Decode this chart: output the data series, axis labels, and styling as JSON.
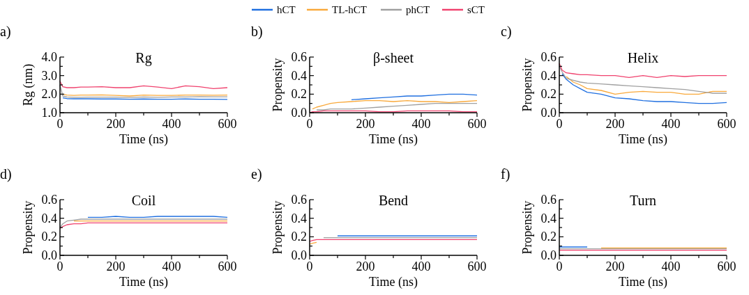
{
  "chart_data": [
    {
      "type": "line",
      "title": "Rg",
      "xlabel": "Time (ns)",
      "ylabel": "Rg (nm)",
      "annotations": [
        "a)"
      ],
      "legend": "top",
      "x": [
        0,
        10,
        25,
        50,
        75,
        100,
        150,
        200,
        250,
        300,
        350,
        400,
        450,
        500,
        550,
        600
      ],
      "xlim": [
        0,
        600
      ],
      "xticks": [
        0,
        {
          "value": 100,
          "label": null
        },
        200,
        {
          "value": 300,
          "label": null
        },
        400,
        {
          "value": 500,
          "label": null
        },
        600
      ],
      "ylim": [
        1,
        4
      ],
      "yticks": [
        {
          "value": 1,
          "label": "1.0"
        },
        {
          "value": 1.5,
          "label": null
        },
        {
          "value": 2,
          "label": "2.0"
        },
        {
          "value": 2.5,
          "label": null
        },
        {
          "value": 3,
          "label": "3.0"
        },
        {
          "value": 3.5,
          "label": null
        },
        {
          "value": 4,
          "label": "4.0"
        }
      ],
      "series": [
        {
          "name": "hCT",
          "color": "#1f6fe0",
          "values": [
            null,
            1.8,
            1.76,
            1.75,
            1.75,
            1.75,
            1.74,
            1.74,
            1.73,
            1.74,
            1.73,
            1.73,
            1.74,
            1.73,
            1.73,
            1.72
          ]
        },
        {
          "name": "TL-hCT",
          "color": "#f9a93b",
          "values": [
            null,
            2.0,
            1.95,
            1.93,
            1.95,
            1.95,
            1.96,
            1.93,
            1.9,
            1.95,
            1.93,
            1.93,
            1.95,
            1.95,
            1.94,
            1.95
          ]
        },
        {
          "name": "phCT",
          "color": "#a0a0a0",
          "values": [
            2.5,
            1.9,
            1.85,
            1.83,
            1.83,
            1.84,
            1.84,
            1.84,
            1.82,
            1.85,
            1.83,
            1.85,
            1.85,
            1.87,
            1.86,
            1.86
          ]
        },
        {
          "name": "sCT",
          "color": "#f0426e",
          "values": [
            2.7,
            2.4,
            2.35,
            2.35,
            2.38,
            2.38,
            2.4,
            2.35,
            2.35,
            2.45,
            2.38,
            2.3,
            2.45,
            2.4,
            2.3,
            2.35
          ]
        }
      ]
    },
    {
      "type": "line",
      "title": "β-sheet",
      "xlabel": "Time (ns)",
      "ylabel": "Propensity",
      "annotations": [
        "b)"
      ],
      "x": [
        0,
        10,
        25,
        50,
        75,
        100,
        150,
        200,
        250,
        300,
        350,
        400,
        450,
        500,
        550,
        600
      ],
      "xlim": [
        0,
        600
      ],
      "xticks": [
        0,
        {
          "value": 100,
          "label": null
        },
        200,
        {
          "value": 300,
          "label": null
        },
        400,
        {
          "value": 500,
          "label": null
        },
        600
      ],
      "ylim": [
        0,
        0.6
      ],
      "yticks": [
        {
          "value": 0,
          "label": "0.0"
        },
        {
          "value": 0.1,
          "label": null
        },
        0.2,
        {
          "value": 0.3,
          "label": null
        },
        0.4,
        {
          "value": 0.5,
          "label": null
        },
        0.6
      ],
      "series": [
        {
          "color": "#1f6fe0",
          "values": [
            null,
            null,
            null,
            null,
            null,
            null,
            0.14,
            0.15,
            0.16,
            0.17,
            0.18,
            0.18,
            0.19,
            0.2,
            0.2,
            0.19
          ]
        },
        {
          "color": "#f9a93b",
          "values": [
            null,
            0.04,
            0.06,
            0.08,
            0.1,
            0.11,
            0.12,
            0.13,
            0.13,
            0.12,
            0.13,
            0.12,
            0.12,
            0.11,
            0.12,
            0.13
          ]
        },
        {
          "color": "#a0a0a0",
          "values": [
            null,
            null,
            0.03,
            0.03,
            0.04,
            0.04,
            0.04,
            0.05,
            0.06,
            0.07,
            0.08,
            0.09,
            0.1,
            0.1,
            0.1,
            0.1
          ]
        },
        {
          "color": "#f0426e",
          "values": [
            0,
            0.01,
            0.01,
            0.02,
            0.02,
            0.02,
            0.02,
            0.02,
            0.01,
            0.01,
            0.02,
            0.02,
            0.02,
            0.02,
            0.01,
            0.01
          ]
        }
      ]
    },
    {
      "type": "line",
      "title": "Helix",
      "xlabel": "Time (ns)",
      "ylabel": "Propensity",
      "annotations": [
        "c)"
      ],
      "x": [
        0,
        10,
        25,
        50,
        75,
        100,
        150,
        200,
        250,
        300,
        350,
        400,
        450,
        500,
        550,
        600
      ],
      "xlim": [
        0,
        600
      ],
      "xticks": [
        0,
        {
          "value": 100,
          "label": null
        },
        200,
        {
          "value": 300,
          "label": null
        },
        400,
        {
          "value": 500,
          "label": null
        },
        600
      ],
      "ylim": [
        0,
        0.6
      ],
      "yticks": [
        {
          "value": 0,
          "label": "0.0"
        },
        {
          "value": 0.1,
          "label": null
        },
        0.2,
        {
          "value": 0.3,
          "label": null
        },
        0.4,
        {
          "value": 0.5,
          "label": null
        },
        0.6
      ],
      "series": [
        {
          "color": "#1f6fe0",
          "values": [
            null,
            0.42,
            0.36,
            0.3,
            0.26,
            0.22,
            0.2,
            0.16,
            0.15,
            0.13,
            0.12,
            0.12,
            0.11,
            0.1,
            0.1,
            0.11
          ]
        },
        {
          "color": "#f9a93b",
          "values": [
            null,
            null,
            0.39,
            0.33,
            0.3,
            0.26,
            0.24,
            0.2,
            0.22,
            0.23,
            0.22,
            0.22,
            0.2,
            0.2,
            0.23,
            0.23
          ]
        },
        {
          "color": "#a0a0a0",
          "values": [
            0.5,
            0.44,
            0.37,
            0.35,
            0.33,
            0.32,
            0.31,
            0.3,
            0.29,
            0.28,
            0.27,
            0.26,
            0.25,
            0.23,
            0.21,
            0.21
          ]
        },
        {
          "color": "#f0426e",
          "values": [
            0.53,
            0.46,
            0.43,
            0.42,
            0.41,
            0.41,
            0.4,
            0.4,
            0.38,
            0.4,
            0.38,
            0.4,
            0.39,
            0.4,
            0.4,
            0.4
          ]
        }
      ]
    },
    {
      "type": "line",
      "title": "Coil",
      "xlabel": "Time (ns)",
      "ylabel": "Propensity",
      "annotations": [
        "d)"
      ],
      "x": [
        0,
        10,
        25,
        50,
        75,
        100,
        150,
        200,
        250,
        300,
        350,
        400,
        450,
        500,
        550,
        600
      ],
      "xlim": [
        0,
        600
      ],
      "xticks": [
        0,
        {
          "value": 100,
          "label": null
        },
        200,
        {
          "value": 300,
          "label": null
        },
        400,
        {
          "value": 500,
          "label": null
        },
        600
      ],
      "ylim": [
        0,
        0.6
      ],
      "yticks": [
        {
          "value": 0,
          "label": "0.0"
        },
        {
          "value": 0.1,
          "label": null
        },
        0.2,
        {
          "value": 0.3,
          "label": null
        },
        0.4,
        {
          "value": 0.5,
          "label": null
        },
        0.6
      ],
      "series": [
        {
          "color": "#1f6fe0",
          "values": [
            null,
            null,
            null,
            null,
            null,
            0.41,
            0.41,
            0.42,
            0.41,
            0.41,
            0.42,
            0.42,
            0.42,
            0.42,
            0.42,
            0.41
          ]
        },
        {
          "color": "#f9a93b",
          "values": [
            null,
            null,
            null,
            0.37,
            0.37,
            0.37,
            0.37,
            0.37,
            0.37,
            0.37,
            0.37,
            0.37,
            0.37,
            0.37,
            0.37,
            0.37
          ]
        },
        {
          "color": "#a0a0a0",
          "values": [
            0.3,
            0.34,
            0.37,
            0.38,
            0.39,
            0.39,
            0.39,
            0.39,
            0.39,
            0.39,
            0.39,
            0.39,
            0.39,
            0.39,
            0.39,
            0.39
          ]
        },
        {
          "color": "#f0426e",
          "values": [
            0.29,
            0.31,
            0.33,
            0.34,
            0.34,
            0.35,
            0.35,
            0.35,
            0.35,
            0.35,
            0.35,
            0.35,
            0.35,
            0.35,
            0.35,
            0.35
          ]
        }
      ]
    },
    {
      "type": "line",
      "title": "Bend",
      "xlabel": "Time (ns)",
      "ylabel": "Propensity",
      "annotations": [
        "e)"
      ],
      "x": [
        0,
        10,
        25,
        50,
        75,
        100,
        150,
        200,
        250,
        300,
        350,
        400,
        450,
        500,
        550,
        600
      ],
      "xlim": [
        0,
        600
      ],
      "xticks": [
        0,
        {
          "value": 100,
          "label": null
        },
        200,
        {
          "value": 300,
          "label": null
        },
        400,
        {
          "value": 500,
          "label": null
        },
        600
      ],
      "ylim": [
        0,
        0.6
      ],
      "yticks": [
        {
          "value": 0,
          "label": "0.0"
        },
        {
          "value": 0.1,
          "label": null
        },
        0.2,
        {
          "value": 0.3,
          "label": null
        },
        0.4,
        {
          "value": 0.5,
          "label": null
        },
        0.6
      ],
      "series": [
        {
          "color": "#1f6fe0",
          "values": [
            null,
            null,
            null,
            null,
            null,
            0.21,
            0.21,
            0.21,
            0.21,
            0.21,
            0.21,
            0.21,
            0.21,
            0.21,
            0.21,
            0.21
          ]
        },
        {
          "color": "#f9a93b",
          "values": [
            0.12,
            0.13,
            0.14,
            null,
            null,
            null,
            null,
            null,
            null,
            null,
            null,
            null,
            null,
            null,
            null,
            null
          ]
        },
        {
          "color": "#a0a0a0",
          "values": [
            null,
            null,
            null,
            0.19,
            0.19,
            0.19,
            0.19,
            0.19,
            0.19,
            0.19,
            0.19,
            0.19,
            0.19,
            0.19,
            0.19,
            0.19
          ]
        },
        {
          "color": "#f0426e",
          "values": [
            0.15,
            0.16,
            0.17,
            0.17,
            0.17,
            0.17,
            0.17,
            0.17,
            0.17,
            0.17,
            0.17,
            0.17,
            0.17,
            0.17,
            0.17,
            0.17
          ]
        }
      ]
    },
    {
      "type": "line",
      "title": "Turn",
      "xlabel": "Time (ns)",
      "ylabel": "Propensity",
      "annotations": [
        "f)"
      ],
      "x": [
        0,
        10,
        25,
        50,
        75,
        100,
        150,
        200,
        250,
        300,
        350,
        400,
        450,
        500,
        550,
        600
      ],
      "xlim": [
        0,
        600
      ],
      "xticks": [
        0,
        {
          "value": 100,
          "label": null
        },
        200,
        {
          "value": 300,
          "label": null
        },
        400,
        {
          "value": 500,
          "label": null
        },
        600
      ],
      "ylim": [
        0,
        0.6
      ],
      "yticks": [
        {
          "value": 0,
          "label": "0.0"
        },
        {
          "value": 0.1,
          "label": null
        },
        0.2,
        {
          "value": 0.3,
          "label": null
        },
        0.4,
        {
          "value": 0.5,
          "label": null
        },
        0.6
      ],
      "series": [
        {
          "color": "#1f6fe0",
          "values": [
            0.09,
            0.09,
            0.09,
            0.09,
            0.09,
            0.09,
            null,
            null,
            null,
            null,
            null,
            null,
            null,
            null,
            null,
            null
          ]
        },
        {
          "color": "#f9a93b",
          "values": [
            null,
            null,
            null,
            null,
            null,
            null,
            0.08,
            0.08,
            0.08,
            0.08,
            0.08,
            0.08,
            0.08,
            0.08,
            0.08,
            0.08
          ]
        },
        {
          "color": "#a0a0a0",
          "values": [
            0.07,
            0.07,
            0.07,
            0.07,
            0.07,
            0.07,
            0.07,
            0.07,
            0.07,
            0.07,
            0.07,
            0.07,
            0.07,
            0.07,
            0.07,
            0.07
          ]
        },
        {
          "color": "#f0426e",
          "values": [
            0.055,
            0.055,
            0.055,
            0.055,
            0.055,
            0.055,
            0.055,
            0.055,
            0.055,
            0.055,
            0.055,
            0.055,
            0.055,
            0.055,
            0.055,
            0.055
          ]
        }
      ]
    }
  ]
}
